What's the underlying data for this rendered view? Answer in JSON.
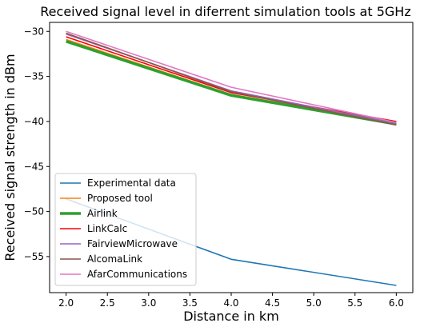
{
  "chart_data": {
    "type": "line",
    "title": "Received signal level in diferrent simulation tools at 5GHz",
    "xlabel": "Distance in km",
    "ylabel": "Received signal strength in dBm",
    "xlim": [
      1.8,
      6.2
    ],
    "ylim": [
      -59,
      -29
    ],
    "xticks": [
      "2.0",
      "2.5",
      "3.0",
      "3.5",
      "4.0",
      "4.5",
      "5.0",
      "5.5",
      "6.0"
    ],
    "yticks": [
      "-30",
      "-35",
      "-40",
      "-45",
      "-50",
      "-55"
    ],
    "x": [
      2,
      4,
      6
    ],
    "legend_position": "lower-left",
    "grid": false,
    "series": [
      {
        "name": "Experimental data",
        "color": "#1f77b4",
        "values": [
          -48.6,
          -55.3,
          -58.2
        ]
      },
      {
        "name": "Proposed tool",
        "color": "#ff7f0e",
        "values": [
          -30.9,
          -37.0,
          -40.1
        ]
      },
      {
        "name": "Airlink",
        "color": "#2ca02c",
        "values": [
          -31.1,
          -37.1,
          -40.3
        ]
      },
      {
        "name": "LinkCalc",
        "color": "#ff0000",
        "values": [
          -30.6,
          -36.8,
          -40.0
        ]
      },
      {
        "name": "FairviewMicrowave",
        "color": "#9467bd",
        "values": [
          -30.3,
          -36.6,
          -40.2
        ]
      },
      {
        "name": "AlcomaLink",
        "color": "#8c564b",
        "values": [
          -30.2,
          -36.7,
          -40.4
        ]
      },
      {
        "name": "AfarCommunications",
        "color": "#e377c2",
        "values": [
          -30.0,
          -36.2,
          -40.1
        ]
      }
    ]
  }
}
